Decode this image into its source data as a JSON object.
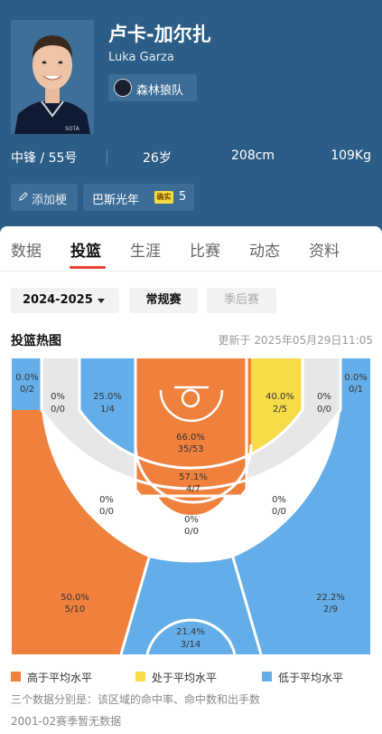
{
  "player": {
    "name_cn": "卢卡-加尔扎",
    "name_en": "Luka Garza",
    "team": "森林狼队",
    "position_number": "中锋 / 55号",
    "age": "26岁",
    "height": "208cm",
    "weight": "109Kg",
    "jersey_text": "SOTA"
  },
  "chips": {
    "add_tag": "添加梗",
    "tag_label": "巴斯光年",
    "tag_badge": "确实",
    "tag_count": "5"
  },
  "tabs": [
    {
      "label": "数据",
      "active": false
    },
    {
      "label": "投篮",
      "active": true
    },
    {
      "label": "生涯",
      "active": false
    },
    {
      "label": "比赛",
      "active": false
    },
    {
      "label": "动态",
      "active": false
    },
    {
      "label": "资料",
      "active": false
    }
  ],
  "filters": {
    "season": "2024-2025",
    "regular": "常规赛",
    "playoffs": "季后赛"
  },
  "heatmap": {
    "title": "投篮热图",
    "updated": "更新于 2025年05月29日11:05",
    "colors": {
      "above": "#f0813d",
      "average": "#f7dc4a",
      "below": "#63aee9",
      "none": "#e7e7e7"
    },
    "zones": {
      "left_corner_three": {
        "pct": "0.0%",
        "made_att": "0/2"
      },
      "right_corner_three": {
        "pct": "0.0%",
        "made_att": "0/1"
      },
      "left_baseline_mid": {
        "pct": "0%",
        "made_att": "0/0"
      },
      "left_short": {
        "pct": "25.0%",
        "made_att": "1/4"
      },
      "restricted_area": {
        "pct": "66.0%",
        "made_att": "35/53"
      },
      "right_short": {
        "pct": "40.0%",
        "made_att": "2/5"
      },
      "right_baseline_mid": {
        "pct": "0%",
        "made_att": "0/0"
      },
      "paint": {
        "pct": "57.1%",
        "made_att": "4/7"
      },
      "left_wing_mid": {
        "pct": "0%",
        "made_att": "0/0"
      },
      "right_wing_mid": {
        "pct": "0%",
        "made_att": "0/0"
      },
      "top_key_mid": {
        "pct": "0%",
        "made_att": "0/0"
      },
      "left_wing_three": {
        "pct": "50.0%",
        "made_att": "5/10"
      },
      "top_three": {
        "pct": "21.4%",
        "made_att": "3/14"
      },
      "right_wing_three": {
        "pct": "22.2%",
        "made_att": "2/9"
      }
    }
  },
  "legend": {
    "above": "高于平均水平",
    "average": "处于平均水平",
    "below": "低于平均水平"
  },
  "notes": {
    "explain": "三个数据分别是：该区域的命中率、命中数和出手数",
    "missing": "2001-02赛季暂无数据"
  }
}
